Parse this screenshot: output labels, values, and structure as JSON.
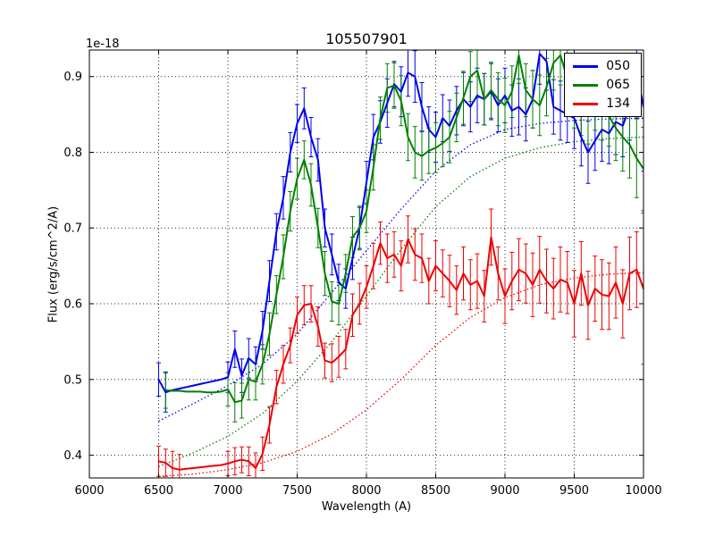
{
  "chart_data": {
    "type": "line",
    "title": "105507901",
    "xlabel": "Wavelength (A)",
    "ylabel": "Flux (erg/s/cm^2/A)",
    "y_offset_label": "1e-18",
    "xlim": [
      6000,
      10000
    ],
    "ylim": [
      0.37,
      0.935
    ],
    "grid": true,
    "grid_style": "dotted",
    "legend_position": "upper-right",
    "error_bars": true,
    "x_ticks": {
      "values": [
        6000,
        6500,
        7000,
        7500,
        8000,
        8500,
        9000,
        9500,
        10000
      ],
      "labels": [
        "6000",
        "6500",
        "7000",
        "7500",
        "8000",
        "8500",
        "9000",
        "9500",
        "10000"
      ]
    },
    "y_ticks": {
      "values": [
        0.4,
        0.5,
        0.6,
        0.7,
        0.8,
        0.9
      ],
      "labels": [
        "0.4",
        "0.5",
        "0.6",
        "0.7",
        "0.8",
        "0.9"
      ]
    },
    "series": [
      {
        "name": "050",
        "color": "#0000ee",
        "x": [
          6500,
          6550,
          6600,
          6650,
          6700,
          6750,
          6800,
          6850,
          6900,
          6950,
          7000,
          7050,
          7100,
          7150,
          7200,
          7250,
          7300,
          7350,
          7400,
          7450,
          7500,
          7550,
          7600,
          7650,
          7700,
          7750,
          7800,
          7850,
          7900,
          7950,
          8000,
          8050,
          8100,
          8150,
          8200,
          8250,
          8300,
          8350,
          8400,
          8450,
          8500,
          8550,
          8600,
          8650,
          8700,
          8750,
          8800,
          8850,
          8900,
          8950,
          9000,
          9050,
          9100,
          9150,
          9200,
          9250,
          9300,
          9350,
          9400,
          9450,
          9500,
          9550,
          9600,
          9650,
          9700,
          9750,
          9800,
          9850,
          9900,
          9950,
          10000
        ],
        "y": [
          0.5,
          0.483,
          0.486,
          0.488,
          0.49,
          0.492,
          0.494,
          0.496,
          0.498,
          0.5,
          0.503,
          0.54,
          0.505,
          0.528,
          0.52,
          0.565,
          0.63,
          0.695,
          0.74,
          0.8,
          0.838,
          0.858,
          0.82,
          0.79,
          0.7,
          0.665,
          0.628,
          0.62,
          0.66,
          0.7,
          0.76,
          0.82,
          0.84,
          0.865,
          0.89,
          0.88,
          0.905,
          0.9,
          0.86,
          0.83,
          0.82,
          0.845,
          0.835,
          0.855,
          0.87,
          0.86,
          0.875,
          0.87,
          0.88,
          0.862,
          0.875,
          0.855,
          0.86,
          0.85,
          0.87,
          0.93,
          0.92,
          0.86,
          0.855,
          0.85,
          0.845,
          0.82,
          0.8,
          0.815,
          0.83,
          0.825,
          0.84,
          0.835,
          0.86,
          0.905,
          0.86
        ],
        "yerr": [
          0.022,
          0.026,
          0,
          0,
          0,
          0,
          0,
          0,
          0,
          0,
          0.02,
          0.024,
          0.022,
          0.026,
          0.023,
          0.025,
          0.027,
          0.024,
          0.028,
          0.026,
          0.025,
          0.027,
          0.026,
          0.028,
          0.025,
          0.027,
          0.024,
          0.026,
          0.028,
          0.027,
          0.028,
          0.03,
          0.028,
          0.032,
          0.03,
          0.033,
          0.031,
          0.034,
          0.032,
          0.03,
          0.033,
          0.031,
          0.034,
          0.032,
          0.035,
          0.033,
          0.036,
          0.034,
          0.037,
          0.035,
          0.036,
          0.034,
          0.037,
          0.035,
          0.038,
          0.04,
          0.038,
          0.036,
          0.039,
          0.037,
          0.04,
          0.038,
          0.041,
          0.039,
          0.042,
          0.04,
          0.043,
          0.041,
          0.044,
          0.06,
          0.085
        ]
      },
      {
        "name": "065",
        "color": "#008000",
        "x": [
          6550,
          6600,
          6650,
          6700,
          6750,
          6800,
          6850,
          6900,
          6950,
          7000,
          7050,
          7100,
          7150,
          7200,
          7250,
          7300,
          7350,
          7400,
          7450,
          7500,
          7550,
          7600,
          7650,
          7700,
          7750,
          7800,
          7850,
          7900,
          7950,
          8000,
          8050,
          8100,
          8150,
          8200,
          8250,
          8300,
          8350,
          8400,
          8450,
          8500,
          8550,
          8600,
          8650,
          8700,
          8750,
          8800,
          8850,
          8900,
          8950,
          9000,
          9050,
          9100,
          9150,
          9200,
          9250,
          9300,
          9350,
          9400,
          9450,
          9500,
          9550,
          9600,
          9650,
          9700,
          9750,
          9800,
          9850,
          9900,
          9950,
          10000
        ],
        "y": [
          0.486,
          0.485,
          0.485,
          0.484,
          0.484,
          0.484,
          0.483,
          0.483,
          0.484,
          0.487,
          0.47,
          0.472,
          0.5,
          0.497,
          0.52,
          0.56,
          0.612,
          0.662,
          0.722,
          0.765,
          0.79,
          0.757,
          0.7,
          0.64,
          0.603,
          0.6,
          0.64,
          0.688,
          0.7,
          0.722,
          0.78,
          0.845,
          0.885,
          0.888,
          0.868,
          0.82,
          0.8,
          0.795,
          0.802,
          0.806,
          0.812,
          0.82,
          0.846,
          0.872,
          0.9,
          0.908,
          0.87,
          0.882,
          0.87,
          0.862,
          0.88,
          0.928,
          0.882,
          0.87,
          0.862,
          0.886,
          0.918,
          0.928,
          0.898,
          0.872,
          0.86,
          0.852,
          0.868,
          0.858,
          0.848,
          0.832,
          0.82,
          0.81,
          0.792,
          0.778
        ],
        "yerr": [
          0.024,
          0,
          0,
          0,
          0,
          0,
          0,
          0,
          0,
          0.022,
          0.026,
          0.023,
          0.027,
          0.024,
          0.026,
          0.028,
          0.025,
          0.029,
          0.026,
          0.027,
          0.025,
          0.028,
          0.026,
          0.029,
          0.026,
          0.028,
          0.025,
          0.027,
          0.029,
          0.028,
          0.03,
          0.028,
          0.032,
          0.03,
          0.033,
          0.031,
          0.034,
          0.032,
          0.03,
          0.033,
          0.031,
          0.034,
          0.032,
          0.035,
          0.033,
          0.036,
          0.034,
          0.037,
          0.035,
          0.036,
          0.034,
          0.037,
          0.035,
          0.038,
          0.04,
          0.038,
          0.036,
          0.039,
          0.037,
          0.04,
          0.038,
          0.041,
          0.039,
          0.042,
          0.04,
          0.043,
          0.045,
          0.044,
          0.052,
          0.055
        ]
      },
      {
        "name": "134",
        "color": "#ee0000",
        "x": [
          6500,
          6550,
          6600,
          6650,
          6700,
          6750,
          6800,
          6850,
          6900,
          6950,
          7000,
          7050,
          7100,
          7150,
          7200,
          7250,
          7300,
          7350,
          7400,
          7450,
          7500,
          7550,
          7600,
          7650,
          7700,
          7750,
          7800,
          7850,
          7900,
          7950,
          8000,
          8050,
          8100,
          8150,
          8200,
          8250,
          8300,
          8350,
          8400,
          8450,
          8500,
          8550,
          8600,
          8650,
          8700,
          8750,
          8800,
          8850,
          8900,
          8950,
          9000,
          9050,
          9100,
          9150,
          9200,
          9250,
          9300,
          9350,
          9400,
          9450,
          9500,
          9550,
          9600,
          9650,
          9700,
          9750,
          9800,
          9850,
          9900,
          9950,
          10000
        ],
        "y": [
          0.392,
          0.39,
          0.383,
          0.381,
          0.382,
          0.383,
          0.384,
          0.385,
          0.386,
          0.387,
          0.389,
          0.392,
          0.394,
          0.392,
          0.383,
          0.402,
          0.44,
          0.49,
          0.52,
          0.545,
          0.585,
          0.598,
          0.6,
          0.57,
          0.525,
          0.522,
          0.53,
          0.54,
          0.585,
          0.6,
          0.622,
          0.65,
          0.68,
          0.66,
          0.665,
          0.65,
          0.685,
          0.665,
          0.66,
          0.63,
          0.65,
          0.64,
          0.63,
          0.618,
          0.64,
          0.625,
          0.63,
          0.61,
          0.688,
          0.64,
          0.61,
          0.63,
          0.645,
          0.64,
          0.625,
          0.645,
          0.63,
          0.62,
          0.632,
          0.628,
          0.6,
          0.64,
          0.598,
          0.62,
          0.612,
          0.61,
          0.628,
          0.6,
          0.64,
          0.645,
          0.62
        ],
        "yerr": [
          0.02,
          0.018,
          0.022,
          0.02,
          0,
          0,
          0,
          0,
          0,
          0,
          0.016,
          0.018,
          0.017,
          0.019,
          0.02,
          0.022,
          0.024,
          0.022,
          0.025,
          0.023,
          0.024,
          0.026,
          0.024,
          0.026,
          0.023,
          0.025,
          0.027,
          0.026,
          0.028,
          0.027,
          0.028,
          0.03,
          0.028,
          0.032,
          0.03,
          0.033,
          0.031,
          0.034,
          0.032,
          0.03,
          0.033,
          0.031,
          0.034,
          0.032,
          0.035,
          0.033,
          0.036,
          0.034,
          0.037,
          0.035,
          0.036,
          0.038,
          0.041,
          0.039,
          0.042,
          0.044,
          0.042,
          0.04,
          0.043,
          0.041,
          0.044,
          0.042,
          0.045,
          0.043,
          0.046,
          0.044,
          0.047,
          0.045,
          0.048,
          0.05,
          0.1
        ]
      }
    ],
    "models": [
      {
        "name": "050",
        "color": "#0000ee",
        "style": "dotted",
        "x": [
          6500,
          6750,
          7000,
          7250,
          7500,
          7750,
          8000,
          8250,
          8500,
          8750,
          9000,
          9250,
          9500,
          9750,
          10000
        ],
        "y": [
          0.445,
          0.468,
          0.492,
          0.52,
          0.56,
          0.615,
          0.67,
          0.725,
          0.775,
          0.81,
          0.83,
          0.838,
          0.842,
          0.844,
          0.845
        ]
      },
      {
        "name": "065",
        "color": "#008000",
        "style": "dotted",
        "x": [
          6500,
          6750,
          7000,
          7250,
          7500,
          7750,
          8000,
          8250,
          8500,
          8750,
          9000,
          9250,
          9500,
          9750,
          10000
        ],
        "y": [
          0.385,
          0.403,
          0.425,
          0.455,
          0.498,
          0.55,
          0.61,
          0.672,
          0.728,
          0.768,
          0.792,
          0.806,
          0.814,
          0.818,
          0.82
        ]
      },
      {
        "name": "134",
        "color": "#ee0000",
        "style": "dotted",
        "x": [
          6500,
          6750,
          7000,
          7250,
          7500,
          7750,
          8000,
          8250,
          8500,
          8750,
          9000,
          9250,
          9500,
          9750,
          10000
        ],
        "y": [
          0.372,
          0.375,
          0.381,
          0.39,
          0.405,
          0.428,
          0.46,
          0.5,
          0.545,
          0.582,
          0.608,
          0.625,
          0.634,
          0.639,
          0.641
        ]
      }
    ],
    "legend": {
      "entries": [
        "050",
        "065",
        "134"
      ]
    }
  }
}
